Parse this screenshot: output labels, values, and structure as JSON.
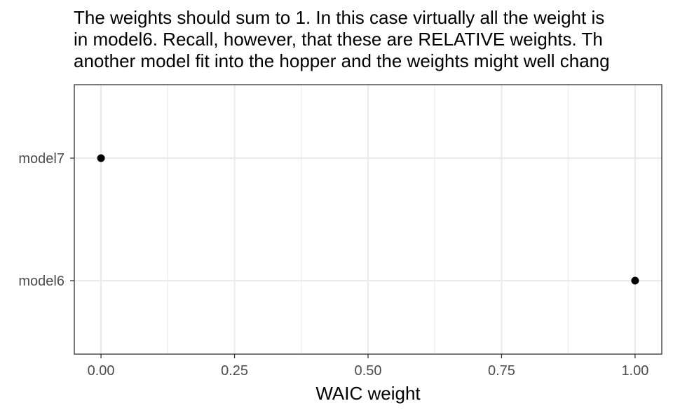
{
  "chart_data": {
    "type": "scatter",
    "title_lines": [
      "The weights should sum to 1. In this case virtually all the weight is",
      "in model6. Recall, however, that these are RELATIVE weights. Th",
      "another model fit into the hopper and the weights might well chang"
    ],
    "xlabel": "WAIC weight",
    "ylabel": "",
    "categories": [
      "model7",
      "model6"
    ],
    "points": [
      {
        "category": "model7",
        "x": 0.0
      },
      {
        "category": "model6",
        "x": 1.0
      }
    ],
    "xlim": [
      -0.05,
      1.05
    ],
    "x_ticks": [
      0.0,
      0.25,
      0.5,
      0.75,
      1.0
    ],
    "x_tick_labels": [
      "0.00",
      "0.25",
      "0.50",
      "0.75",
      "1.00"
    ],
    "grid": true,
    "point_color": "#000000",
    "grid_color": "#ebebeb",
    "panel_border_color": "#333333",
    "tick_label_color": "#4d4d4d"
  }
}
